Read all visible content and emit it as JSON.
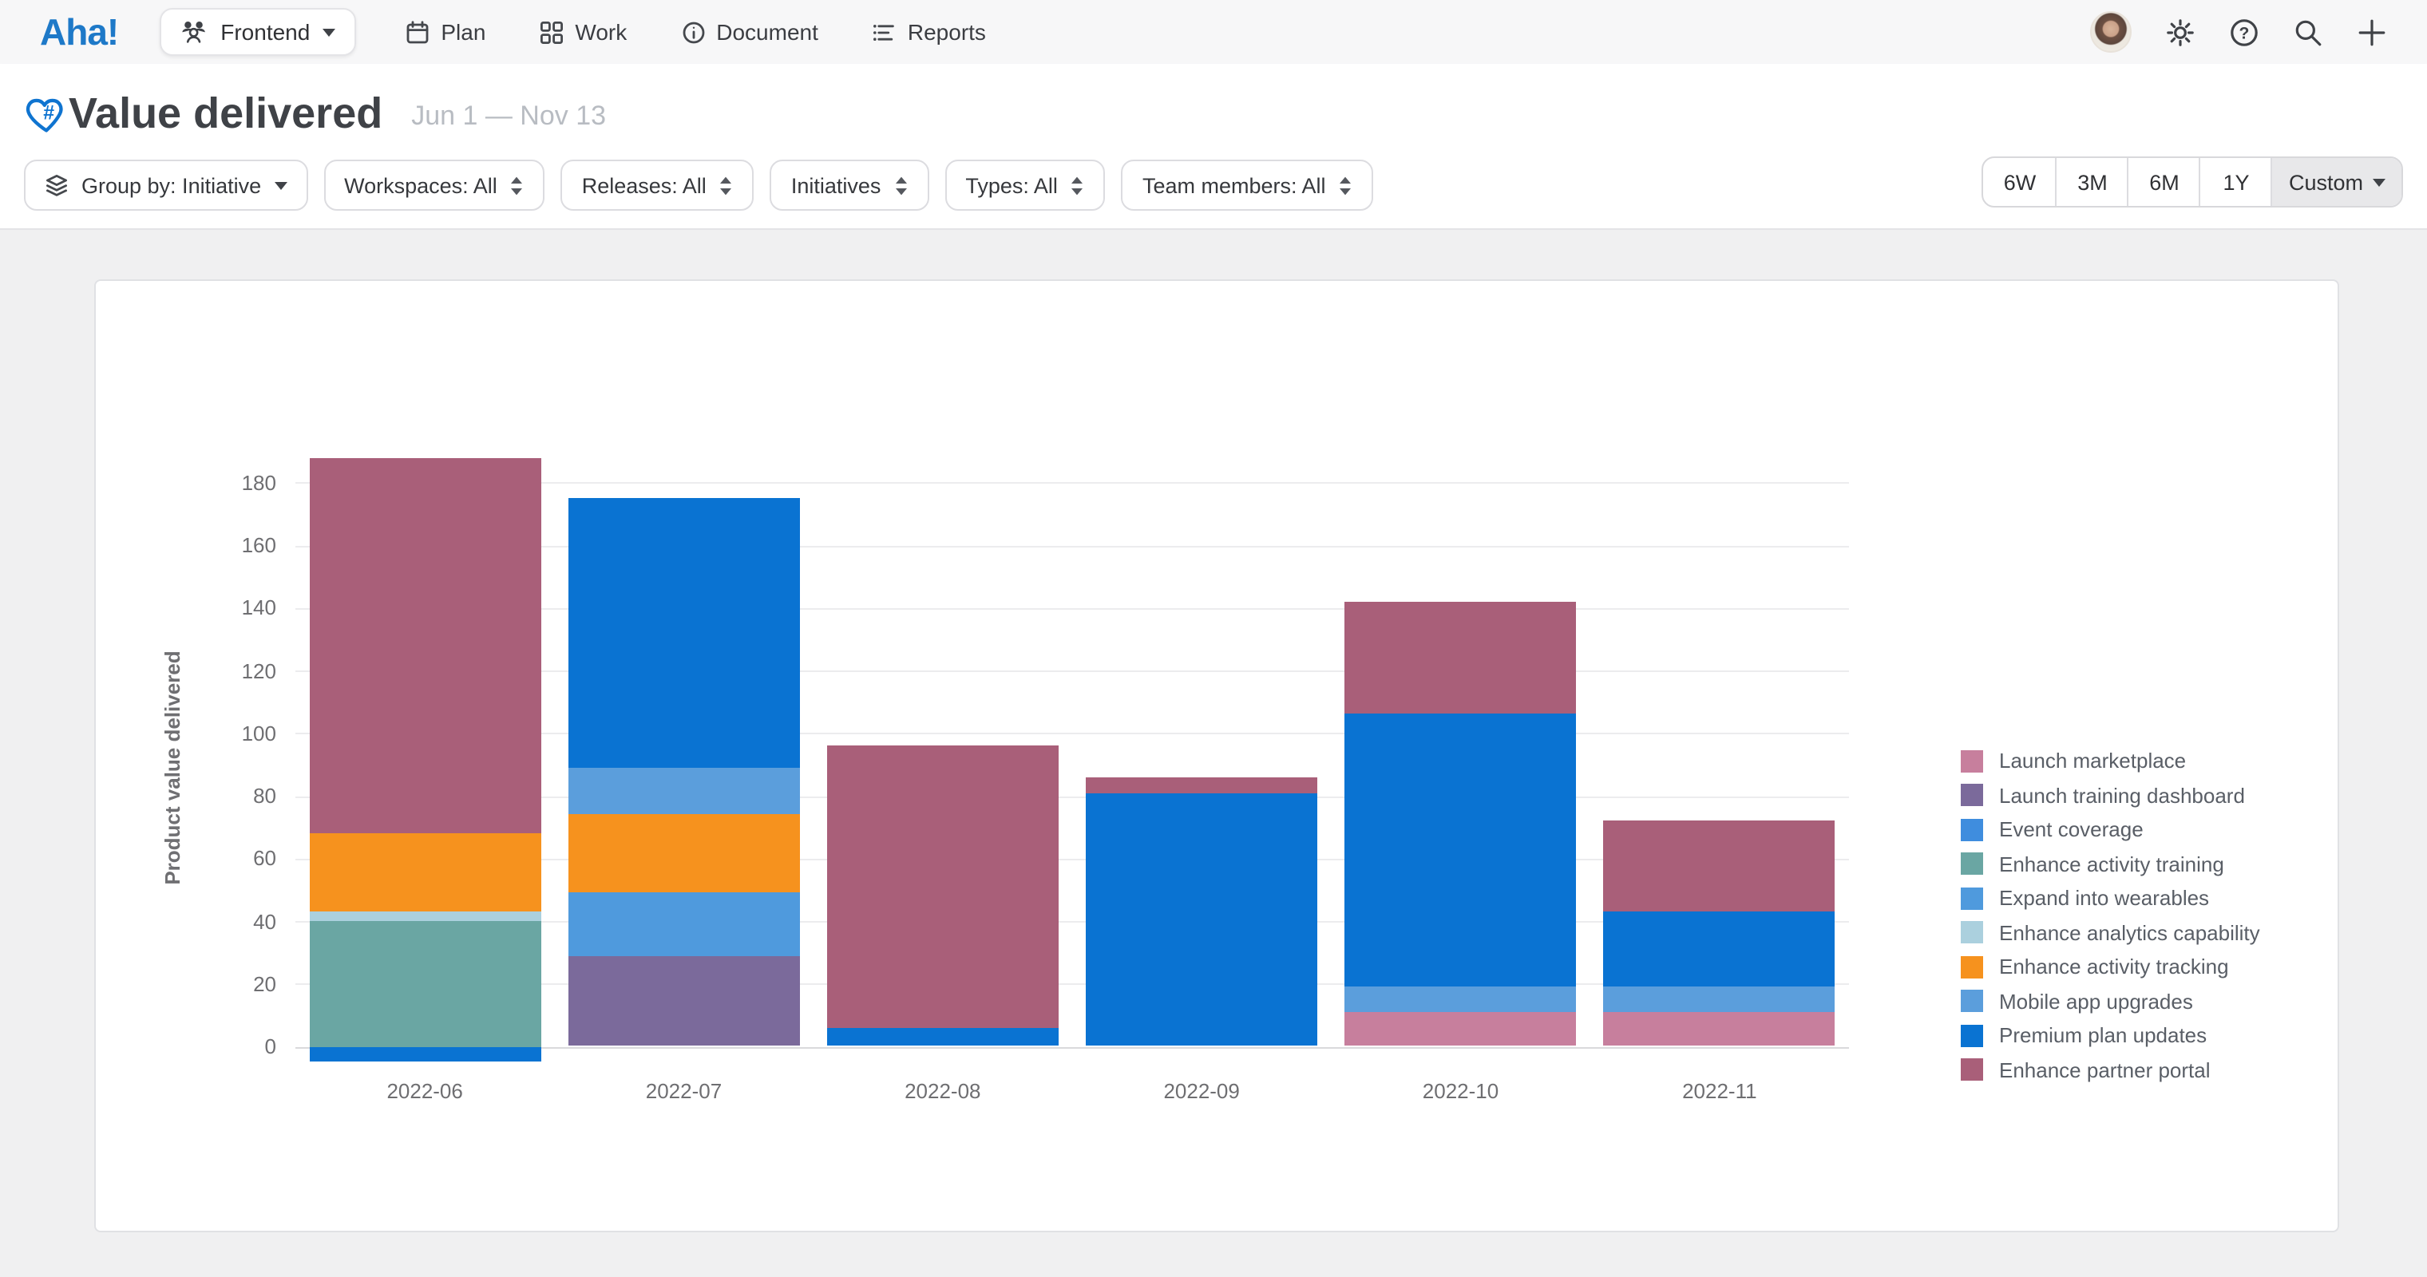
{
  "nav": {
    "logo": "Aha!",
    "workspace_label": "Frontend",
    "items": [
      {
        "label": "Plan",
        "icon": "calendar-icon"
      },
      {
        "label": "Work",
        "icon": "grid-icon"
      },
      {
        "label": "Document",
        "icon": "info-circle-icon"
      },
      {
        "label": "Reports",
        "icon": "reports-icon"
      }
    ]
  },
  "header": {
    "title": "Value delivered",
    "date_range": "Jun 1 — Nov 13"
  },
  "filters": {
    "chips": [
      {
        "label": "Group by: Initiative",
        "icon": "layers-icon",
        "caret": "down"
      },
      {
        "label": "Workspaces: All",
        "caret": "updown"
      },
      {
        "label": "Releases: All",
        "caret": "updown"
      },
      {
        "label": "Initiatives",
        "caret": "updown"
      },
      {
        "label": "Types: All",
        "caret": "updown"
      },
      {
        "label": "Team members: All",
        "caret": "updown"
      }
    ],
    "ranges": [
      {
        "label": "6W",
        "selected": false
      },
      {
        "label": "3M",
        "selected": false
      },
      {
        "label": "6M",
        "selected": false
      },
      {
        "label": "1Y",
        "selected": false
      },
      {
        "label": "Custom",
        "selected": true,
        "caret": true
      }
    ]
  },
  "chart_data": {
    "type": "bar",
    "stacked": true,
    "title": "",
    "ylabel": "Product value delivered",
    "xlabel": "",
    "y_ticks": [
      0,
      20,
      40,
      60,
      80,
      100,
      120,
      140,
      160,
      180
    ],
    "ylim": [
      -8,
      192
    ],
    "grid": true,
    "legend_position": "right",
    "categories": [
      "2022-06",
      "2022-07",
      "2022-08",
      "2022-09",
      "2022-10",
      "2022-11"
    ],
    "series": [
      {
        "name": "Launch marketplace",
        "color": "#c77f9d",
        "values": [
          0,
          0,
          0,
          0,
          11,
          11
        ]
      },
      {
        "name": "Launch training dashboard",
        "color": "#7b6a9b",
        "values": [
          0,
          29,
          0,
          0,
          0,
          0
        ]
      },
      {
        "name": "Event coverage",
        "color": "#3f8dde",
        "values": [
          0,
          0,
          0,
          0,
          0,
          0
        ]
      },
      {
        "name": "Enhance activity training",
        "color": "#6aa6a3",
        "values": [
          40,
          0,
          0,
          0,
          0,
          0
        ]
      },
      {
        "name": "Expand into wearables",
        "color": "#4f9add",
        "values": [
          0,
          20,
          0,
          0,
          0,
          0
        ]
      },
      {
        "name": "Enhance analytics capability",
        "color": "#abd0de",
        "values": [
          3,
          0,
          0,
          0,
          0,
          0
        ]
      },
      {
        "name": "Enhance activity tracking",
        "color": "#f6921e",
        "values": [
          25,
          25,
          0,
          0,
          0,
          0
        ]
      },
      {
        "name": "Mobile app upgrades",
        "color": "#5b9edc",
        "values": [
          0,
          15,
          0,
          0,
          8,
          8
        ]
      },
      {
        "name": "Premium plan updates",
        "color": "#0a73d2",
        "values": [
          -5,
          86,
          6,
          81,
          87,
          24
        ]
      },
      {
        "name": "Enhance partner portal",
        "color": "#a95f79",
        "values": [
          120,
          0,
          90,
          5,
          36,
          29
        ]
      }
    ]
  }
}
